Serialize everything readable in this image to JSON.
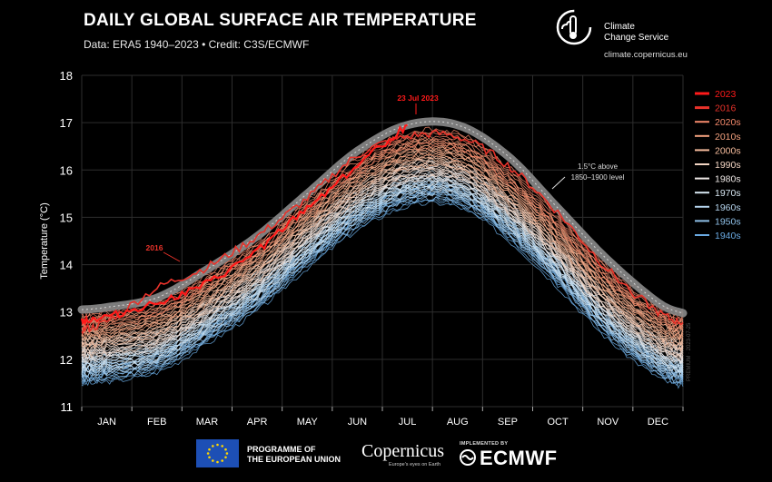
{
  "header": {
    "title": "DAILY GLOBAL SURFACE AIR TEMPERATURE",
    "subtitle": "Data: ERA5 1940–2023 • Credit: C3S/ECMWF"
  },
  "branding": {
    "service_name_line1": "Climate",
    "service_name_line2": "Change Service",
    "url": "climate.copernicus.eu"
  },
  "footer": {
    "eu_line1": "PROGRAMME OF",
    "eu_line2": "THE EUROPEAN UNION",
    "copernicus": "Copernicus",
    "copernicus_sub": "Europe's eyes on Earth",
    "implemented_by": "IMPLEMENTED BY",
    "ecmwf": "ECMWF"
  },
  "colors": {
    "y2023": "#ff1a1a",
    "y2016": "#e8322a",
    "threshold": "#8a8a8a",
    "decade_2020s": "#f4896b",
    "decade_2010s": "#f5a27f",
    "decade_2000s": "#f5bb9c",
    "decade_1990s": "#f2d4c2",
    "decade_1980s": "#eee8e6",
    "decade_1970s": "#d7e6f1",
    "decade_1960s": "#b4d3ec",
    "decade_1950s": "#8fc0e8",
    "decade_1940s": "#6aaae2"
  },
  "chart_data": {
    "type": "line",
    "title": "DAILY GLOBAL SURFACE AIR TEMPERATURE",
    "subtitle": "Data: ERA5 1940–2023 • Credit: C3S/ECMWF",
    "xlabel": "",
    "ylabel": "Temperature (°C)",
    "ylim": [
      11,
      18
    ],
    "yticks": [
      11,
      12,
      13,
      14,
      15,
      16,
      17,
      18
    ],
    "categories": [
      "JAN",
      "FEB",
      "MAR",
      "APR",
      "MAY",
      "JUN",
      "JUL",
      "AUG",
      "SEP",
      "OCT",
      "NOV",
      "DEC"
    ],
    "grid": true,
    "legend_position": "right",
    "legend": [
      "2023",
      "2016",
      "2020s",
      "2010s",
      "2000s",
      "1990s",
      "1980s",
      "1970s",
      "1960s",
      "1950s",
      "1940s"
    ],
    "series": [
      {
        "name": "2023",
        "values": [
          12.9,
          13.2,
          13.6,
          14.3,
          15.2,
          16.1,
          16.95,
          null,
          null,
          null,
          null,
          null
        ]
      },
      {
        "name": "2016",
        "values": [
          12.8,
          13.5,
          13.95,
          14.6,
          15.4,
          16.3,
          16.7,
          16.7,
          16.1,
          15.1,
          13.9,
          13.0
        ]
      },
      {
        "name": "1.5°C above 1850–1900 level",
        "values": [
          13.1,
          13.3,
          13.9,
          14.6,
          15.5,
          16.4,
          16.95,
          16.95,
          16.3,
          15.2,
          14.1,
          13.2
        ]
      },
      {
        "name": "2020s",
        "values": [
          12.9,
          13.1,
          13.7,
          14.4,
          15.3,
          16.1,
          16.6,
          16.6,
          15.9,
          14.9,
          13.8,
          13.0
        ]
      },
      {
        "name": "2010s",
        "values": [
          12.7,
          12.9,
          13.5,
          14.2,
          15.1,
          15.9,
          16.4,
          16.4,
          15.7,
          14.7,
          13.6,
          12.8
        ]
      },
      {
        "name": "2000s",
        "values": [
          12.5,
          12.7,
          13.3,
          14.0,
          14.9,
          15.7,
          16.2,
          16.2,
          15.5,
          14.5,
          13.4,
          12.6
        ]
      },
      {
        "name": "1990s",
        "values": [
          12.3,
          12.5,
          13.1,
          13.8,
          14.7,
          15.5,
          16.0,
          16.0,
          15.3,
          14.3,
          13.2,
          12.4
        ]
      },
      {
        "name": "1980s",
        "values": [
          12.2,
          12.4,
          13.0,
          13.7,
          14.6,
          15.4,
          15.9,
          15.9,
          15.2,
          14.2,
          13.1,
          12.3
        ]
      },
      {
        "name": "1970s",
        "values": [
          12.0,
          12.2,
          12.8,
          13.5,
          14.4,
          15.2,
          15.7,
          15.7,
          15.0,
          14.0,
          12.9,
          12.1
        ]
      },
      {
        "name": "1960s",
        "values": [
          11.9,
          12.1,
          12.7,
          13.4,
          14.3,
          15.1,
          15.6,
          15.6,
          14.9,
          13.9,
          12.8,
          12.0
        ]
      },
      {
        "name": "1950s",
        "values": [
          11.8,
          12.0,
          12.6,
          13.3,
          14.2,
          15.0,
          15.5,
          15.5,
          14.8,
          13.8,
          12.7,
          11.9
        ]
      },
      {
        "name": "1940s",
        "values": [
          11.7,
          11.9,
          12.5,
          13.2,
          14.1,
          14.9,
          15.4,
          15.4,
          14.7,
          13.7,
          12.6,
          11.8
        ]
      }
    ],
    "annotations": [
      {
        "text": "23 Jul 2023",
        "x": "Jul 23",
        "y": 17.05
      },
      {
        "text": "2016",
        "x": "Feb 25",
        "y": 14.0
      },
      {
        "text": "1.5°C above",
        "x": "Sep 25",
        "y": 15.95
      },
      {
        "text": "1850–1900 level",
        "x": "Sep 25",
        "y": 15.7
      }
    ],
    "watermark": "PREMIUM · 2023-07-25"
  }
}
